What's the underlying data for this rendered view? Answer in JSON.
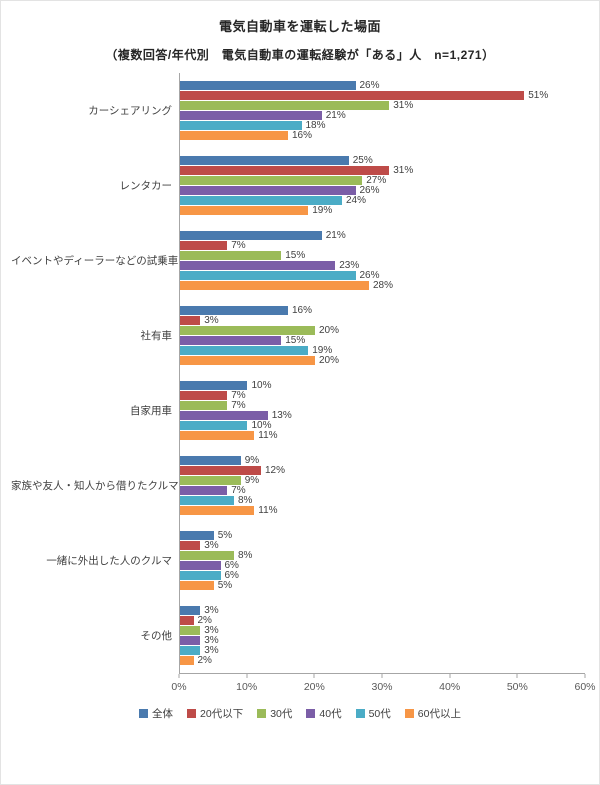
{
  "title": "電気自動車を運転した場面",
  "subtitle": "（複数回答/年代別　電気自動車の運転経験が「ある」人　n=1,271）",
  "chart_data": {
    "type": "bar",
    "orientation": "horizontal",
    "title": "電気自動車を運転した場面",
    "subtitle": "（複数回答/年代別　電気自動車の運転経験が「ある」人　n=1,271）",
    "sample_note": "n=1,271",
    "categories": [
      "カーシェアリング",
      "レンタカー",
      "イベントやディーラーなどの試乗車",
      "社有車",
      "自家用車",
      "家族や友人・知人から借りたクルマ",
      "一緒に外出した人のクルマ",
      "その他"
    ],
    "series": [
      {
        "name": "全体",
        "color": "#4a7aae",
        "values": [
          26,
          25,
          21,
          16,
          10,
          9,
          5,
          3
        ]
      },
      {
        "name": "20代以下",
        "color": "#be4b48",
        "values": [
          51,
          31,
          7,
          3,
          7,
          12,
          3,
          2
        ]
      },
      {
        "name": "30代",
        "color": "#9bbb59",
        "values": [
          31,
          27,
          15,
          20,
          7,
          9,
          8,
          3
        ]
      },
      {
        "name": "40代",
        "color": "#7b5ea7",
        "values": [
          21,
          26,
          23,
          15,
          13,
          7,
          6,
          3
        ]
      },
      {
        "name": "50代",
        "color": "#4bacc6",
        "values": [
          18,
          24,
          26,
          19,
          10,
          8,
          6,
          3
        ]
      },
      {
        "name": "60代以上",
        "color": "#f79646",
        "values": [
          16,
          19,
          28,
          20,
          11,
          11,
          5,
          2
        ]
      }
    ],
    "xlim": [
      0,
      60
    ],
    "xticks": [
      "0%",
      "10%",
      "20%",
      "30%",
      "40%",
      "50%",
      "60%"
    ],
    "value_suffix": "%",
    "grid": false,
    "legend_position": "bottom"
  }
}
